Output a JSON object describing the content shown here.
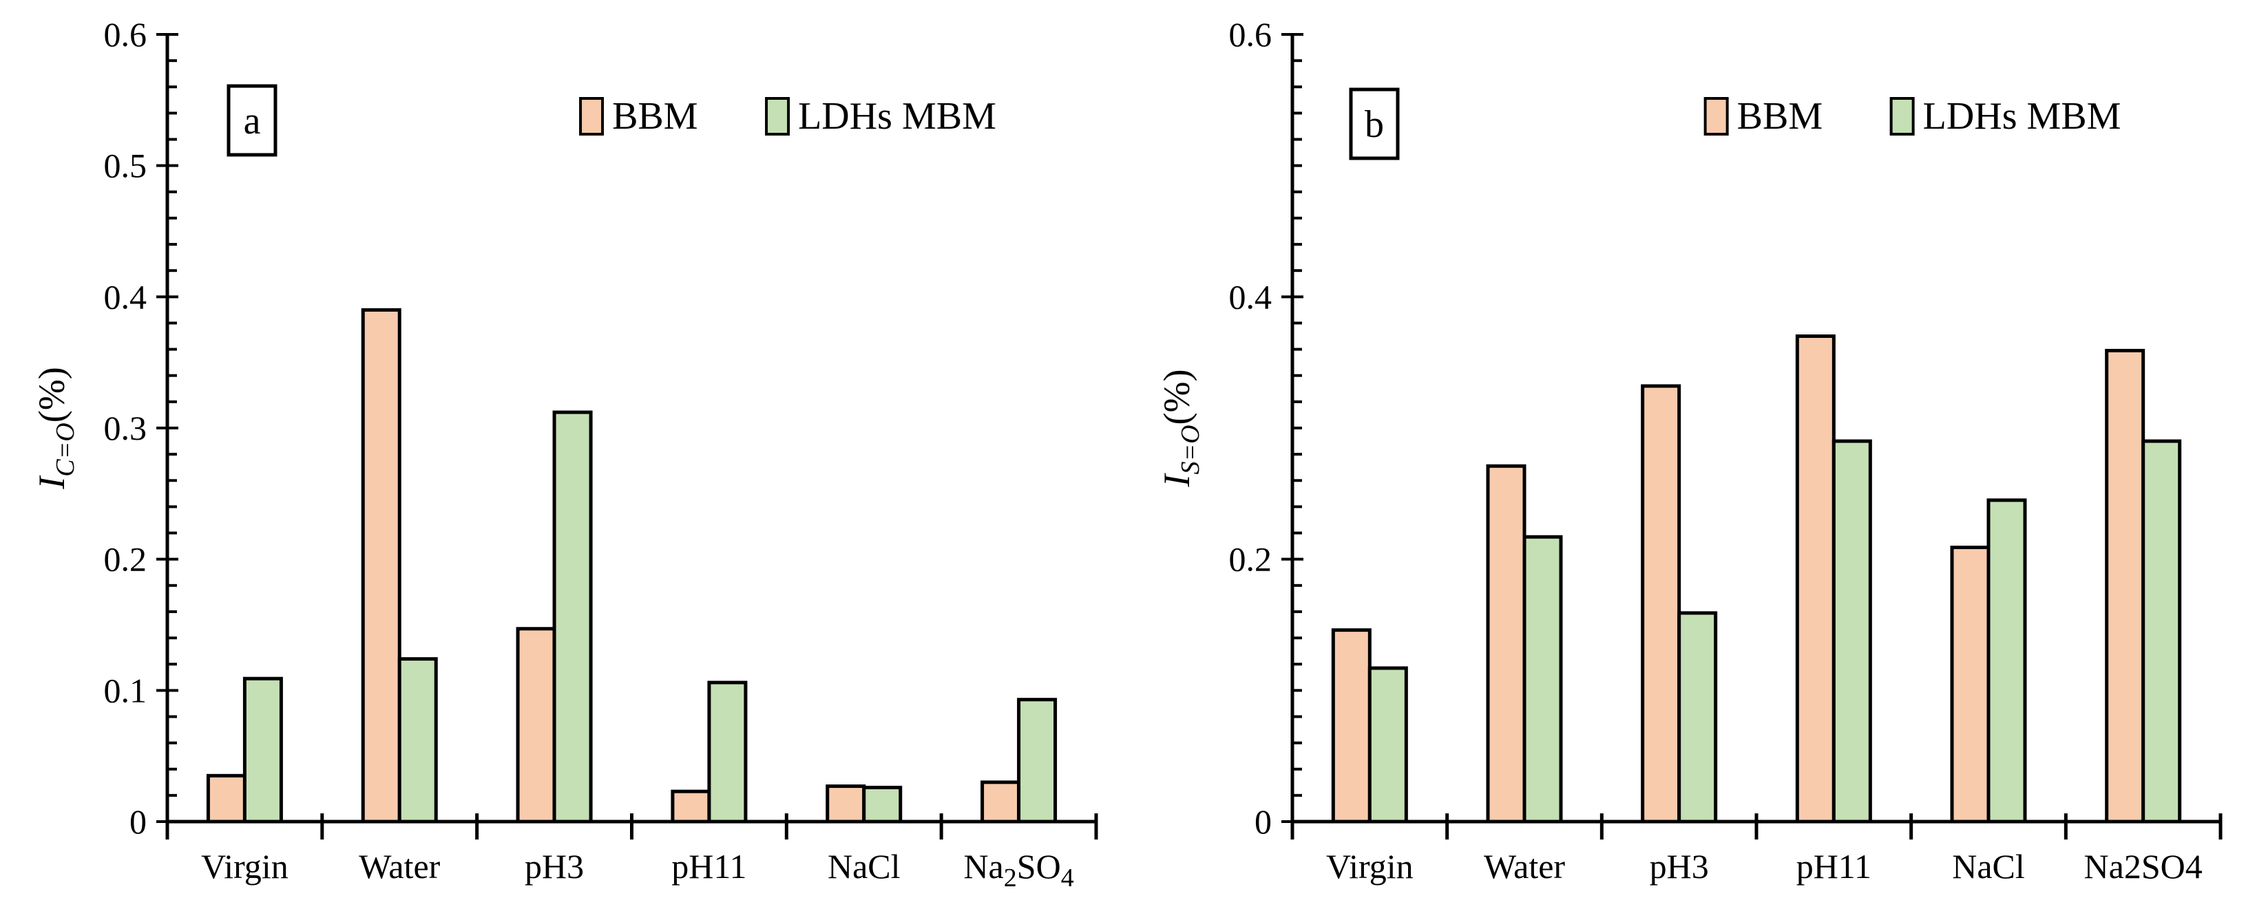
{
  "colors": {
    "bbm": "#f8cbad",
    "ldhs": "#c5e0b4",
    "stroke": "#000000"
  },
  "chart_data": [
    {
      "type": "bar",
      "panel": "a",
      "ylabel": {
        "main": "I",
        "sub": "C=O",
        "unit": "(%)"
      },
      "ylim": [
        0,
        0.6
      ],
      "yticks": [
        0,
        0.1,
        0.2,
        0.3,
        0.4,
        0.5,
        0.6
      ],
      "ytick_labels": [
        "0",
        "0.1",
        "0.2",
        "0.3",
        "0.4",
        "0.5",
        "0.6"
      ],
      "categories": [
        "Virgin",
        "Water",
        "pH3",
        "pH11",
        "NaCl",
        "Na2SO4"
      ],
      "category_labels": [
        {
          "main": "Virgin"
        },
        {
          "main": "Water"
        },
        {
          "main": "pH3"
        },
        {
          "main": "pH11"
        },
        {
          "main": "NaCl"
        },
        {
          "main": "Na",
          "sub1": "2",
          "mid": "SO",
          "sub2": "4"
        }
      ],
      "series": [
        {
          "name": "BBM",
          "values": [
            0.035,
            0.39,
            0.147,
            0.023,
            0.027,
            0.03
          ]
        },
        {
          "name": "LDHs MBM",
          "values": [
            0.109,
            0.124,
            0.312,
            0.106,
            0.026,
            0.093
          ]
        }
      ],
      "legend": "top-right",
      "grid": false
    },
    {
      "type": "bar",
      "panel": "b",
      "ylabel": {
        "main": "I",
        "sub": "S=O",
        "unit": "(%)"
      },
      "ylim": [
        0,
        0.6
      ],
      "yticks": [
        0,
        0.2,
        0.4,
        0.6
      ],
      "ytick_labels": [
        "0",
        "0.2",
        "0.4",
        "0.6"
      ],
      "categories": [
        "Virgin",
        "Water",
        "pH3",
        "pH11",
        "NaCl",
        "Na2SO4"
      ],
      "category_labels": [
        {
          "main": "Virgin"
        },
        {
          "main": "Water"
        },
        {
          "main": "pH3"
        },
        {
          "main": "pH11"
        },
        {
          "main": "NaCl"
        },
        {
          "main": "Na2SO4"
        }
      ],
      "series": [
        {
          "name": "BBM",
          "values": [
            0.146,
            0.271,
            0.332,
            0.37,
            0.209,
            0.359
          ]
        },
        {
          "name": "LDHs MBM",
          "values": [
            0.117,
            0.217,
            0.159,
            0.29,
            0.245,
            0.29
          ]
        }
      ],
      "legend": "top-right",
      "grid": false
    }
  ]
}
